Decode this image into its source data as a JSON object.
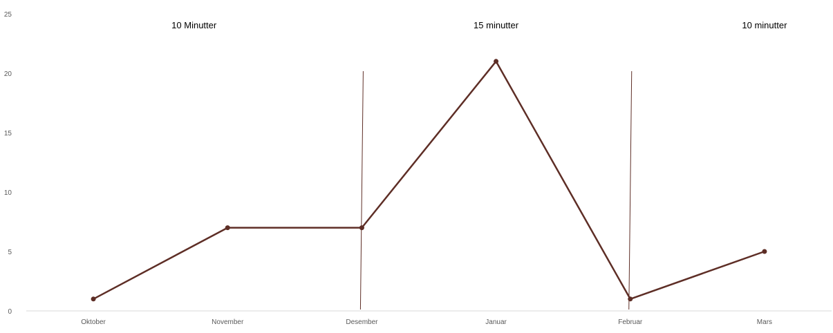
{
  "chart_data": {
    "type": "line",
    "categories": [
      "Oktober",
      "November",
      "Desember",
      "Januar",
      "Februar",
      "Mars"
    ],
    "series": [
      {
        "values": [
          1,
          7,
          7,
          21,
          1,
          5
        ]
      }
    ],
    "ylim": [
      0,
      25
    ],
    "yticks": [
      "0",
      "5",
      "10",
      "15",
      "20",
      "25"
    ],
    "grid": false,
    "legend": "none",
    "annotations": [
      "10 Minutter",
      "15 minutter",
      "10 minutter"
    ],
    "separators_between": [
      [
        "November",
        "Desember"
      ],
      [
        "Januar",
        "Februar"
      ]
    ],
    "colors": {
      "series": "#5e2e26",
      "separator": "#5e2e26",
      "axis": "#d9d9d9"
    }
  }
}
